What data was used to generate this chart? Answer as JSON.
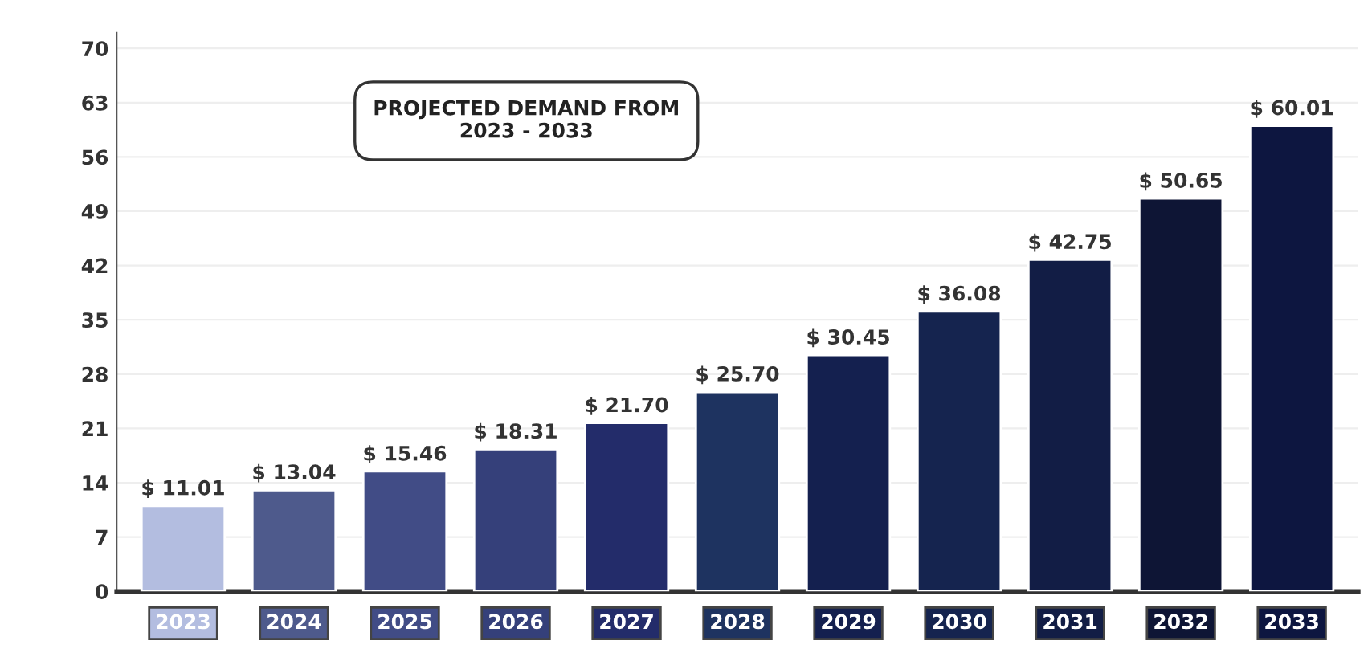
{
  "chart_data": {
    "type": "bar",
    "categories": [
      "2023",
      "2024",
      "2025",
      "2026",
      "2027",
      "2028",
      "2029",
      "2030",
      "2031",
      "2032",
      "2033"
    ],
    "values": [
      11.01,
      13.04,
      15.46,
      18.31,
      21.7,
      25.7,
      30.45,
      36.08,
      42.75,
      50.65,
      60.01
    ],
    "value_labels": [
      "$ 11.01",
      "$ 13.04",
      "$ 15.46",
      "$ 18.31",
      "$ 21.70",
      "$ 25.70",
      "$ 30.45",
      "$ 36.08",
      "$ 42.75",
      "$ 50.65",
      "$ 60.01"
    ],
    "colors": [
      "#b3bde0",
      "#4e5a8c",
      "#414c86",
      "#35407a",
      "#232c6a",
      "#1e3360",
      "#14204f",
      "#15244f",
      "#121d45",
      "#0e1535",
      "#0d1640"
    ],
    "ylim": [
      0,
      72
    ],
    "yticks": [
      0,
      7,
      14,
      21,
      28,
      35,
      42,
      49,
      56,
      63,
      70
    ],
    "grid": "y",
    "annotations": [
      "PROJECTED DEMAND FROM\n2023 - 2033"
    ]
  }
}
